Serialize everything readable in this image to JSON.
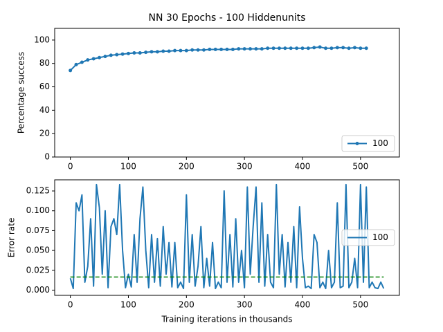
{
  "chart_data": [
    {
      "type": "line",
      "title": "NN 30 Epochs - 100 Hiddenunits",
      "ylabel": "Percentage success",
      "x": [
        0,
        10,
        20,
        30,
        40,
        50,
        60,
        70,
        80,
        90,
        100,
        110,
        120,
        130,
        140,
        150,
        160,
        170,
        180,
        190,
        200,
        210,
        220,
        230,
        240,
        250,
        260,
        270,
        280,
        290,
        300,
        310,
        320,
        330,
        340,
        350,
        360,
        370,
        380,
        390,
        400,
        410,
        420,
        430,
        440,
        450,
        460,
        470,
        480,
        490,
        500,
        510
      ],
      "series": [
        {
          "name": "100",
          "color": "#1f77b4",
          "marker": true,
          "values": [
            74,
            79,
            81,
            83,
            84,
            85,
            86,
            87,
            87.5,
            88,
            88.5,
            89,
            89,
            89.5,
            90,
            90,
            90.5,
            90.5,
            91,
            91,
            91,
            91.5,
            91.5,
            91.5,
            92,
            92,
            92,
            92,
            92,
            92.5,
            92.5,
            92.5,
            92.5,
            92.5,
            93,
            93,
            93,
            93,
            93,
            93,
            93,
            93,
            93.5,
            94,
            93,
            93,
            93.5,
            93.5,
            93,
            93.5,
            93,
            93
          ]
        }
      ],
      "xlim": [
        -27,
        567
      ],
      "xticks": [
        0,
        100,
        200,
        300,
        400,
        500
      ],
      "ylim": [
        0,
        110
      ],
      "yticks": [
        0,
        20,
        40,
        60,
        80,
        100
      ],
      "legend": "lower right"
    },
    {
      "type": "line",
      "xlabel": "Training iterations in thousands",
      "ylabel": "Error rate",
      "x": [
        0,
        5,
        10,
        15,
        20,
        25,
        30,
        35,
        40,
        45,
        50,
        55,
        60,
        65,
        70,
        75,
        80,
        85,
        90,
        95,
        100,
        105,
        110,
        115,
        120,
        125,
        130,
        135,
        140,
        145,
        150,
        155,
        160,
        165,
        170,
        175,
        180,
        185,
        190,
        195,
        200,
        205,
        210,
        215,
        220,
        225,
        230,
        235,
        240,
        245,
        250,
        255,
        260,
        265,
        270,
        275,
        280,
        285,
        290,
        295,
        300,
        305,
        310,
        315,
        320,
        325,
        330,
        335,
        340,
        345,
        350,
        355,
        360,
        365,
        370,
        375,
        380,
        385,
        390,
        395,
        400,
        405,
        410,
        415,
        420,
        425,
        430,
        435,
        440,
        445,
        450,
        455,
        460,
        465,
        470,
        475,
        480,
        485,
        490,
        495,
        500,
        505,
        510,
        515,
        520,
        525,
        530,
        535,
        540
      ],
      "series": [
        {
          "name": "100",
          "color": "#1f77b4",
          "marker": false,
          "values": [
            0.015,
            0.002,
            0.11,
            0.1,
            0.12,
            0.01,
            0.03,
            0.09,
            0.005,
            0.133,
            0.104,
            0.02,
            0.1,
            0.003,
            0.08,
            0.09,
            0.07,
            0.133,
            0.05,
            0.003,
            0.02,
            0.004,
            0.07,
            0.01,
            0.09,
            0.13,
            0.05,
            0.003,
            0.07,
            0.01,
            0.065,
            0.005,
            0.08,
            0.02,
            0.06,
            0.004,
            0.06,
            0.003,
            0.01,
            0.002,
            0.12,
            0.01,
            0.07,
            0.005,
            0.03,
            0.08,
            0.003,
            0.04,
            0.005,
            0.06,
            0.002,
            0.01,
            0.003,
            0.125,
            0.01,
            0.07,
            0.004,
            0.09,
            0.01,
            0.05,
            0.003,
            0.13,
            0.02,
            0.08,
            0.13,
            0.01,
            0.11,
            0.005,
            0.07,
            0.01,
            0.003,
            0.133,
            0.02,
            0.07,
            0.004,
            0.06,
            0.01,
            0.08,
            0.003,
            0.105,
            0.04,
            0.003,
            0.005,
            0.002,
            0.07,
            0.06,
            0.003,
            0.01,
            0.002,
            0.05,
            0.003,
            0.01,
            0.11,
            0.003,
            0.005,
            0.133,
            0.003,
            0.01,
            0.04,
            0.003,
            0.133,
            0.01,
            0.13,
            0.003,
            0.01,
            0.003,
            0.002,
            0.01,
            0.002
          ]
        }
      ],
      "hline": {
        "y": 0.0165,
        "xrange": [
          0,
          540
        ],
        "color": "#008000",
        "style": "dashed"
      },
      "xlim": [
        -27,
        567
      ],
      "xticks": [
        0,
        100,
        200,
        300,
        400,
        500
      ],
      "ylim": [
        -0.0066,
        0.139
      ],
      "yticks": [
        {
          "value": 0,
          "label": "0.000"
        },
        {
          "value": 0.025,
          "label": "0.025"
        },
        {
          "value": 0.05,
          "label": "0.050"
        },
        {
          "value": 0.075,
          "label": "0.075"
        },
        {
          "value": 0.1,
          "label": "0.100"
        },
        {
          "value": 0.125,
          "label": "0.125"
        }
      ],
      "legend": "center right"
    }
  ]
}
